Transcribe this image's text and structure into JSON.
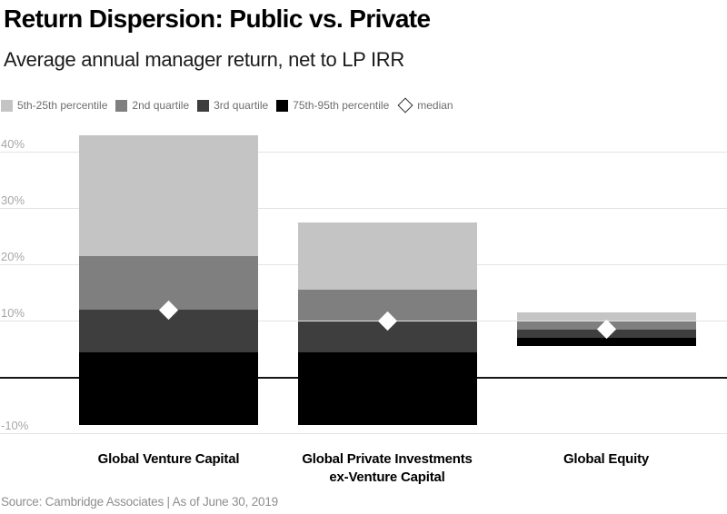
{
  "header": {
    "title": "Return Dispersion: Public vs. Private",
    "subtitle": "Average annual manager return, net to LP IRR"
  },
  "legend": {
    "items": [
      {
        "label": "5th-25th percentile",
        "swatch": "p5_25"
      },
      {
        "label": "2nd quartile",
        "swatch": "q2"
      },
      {
        "label": "3rd quartile",
        "swatch": "q3"
      },
      {
        "label": "75th-95th percentile",
        "swatch": "p75_95"
      },
      {
        "label": "median",
        "swatch": "median_marker"
      }
    ]
  },
  "footer": {
    "source": "Source: Cambridge Associates | As of June 30, 2019"
  },
  "chart_data": {
    "type": "bar",
    "subtype": "stacked-range-dispersion",
    "title": "Return Dispersion: Public vs. Private",
    "subtitle": "Average annual manager return, net to LP IRR",
    "unit": "percent (net to LP IRR)",
    "grid": "horizontal",
    "legend_position": "top-left",
    "ylim": [
      -10,
      43.6
    ],
    "yticks": [
      40,
      30,
      20,
      10,
      -10
    ],
    "ytick_suffix": "%",
    "categories": [
      {
        "label_lines": [
          "Global Venture Capital"
        ],
        "p5": 43,
        "p25": 21.5,
        "median": 12,
        "p75": 4.5,
        "p95": -8.5
      },
      {
        "label_lines": [
          "Global Private Investments",
          "ex-Venture Capital"
        ],
        "p5": 27.5,
        "p25": 15.5,
        "median": 10,
        "p75": 4.5,
        "p95": -8.5
      },
      {
        "label_lines": [
          "Global Equity"
        ],
        "p5": 11.5,
        "p25": 10,
        "median": 8.5,
        "p75": 7,
        "p95": 5.5
      }
    ],
    "segments": [
      {
        "name": "5th-25th percentile",
        "from": "p5",
        "to": "p25",
        "color_key": "p5_25"
      },
      {
        "name": "2nd quartile",
        "from": "p25",
        "to": "median",
        "color_key": "q2"
      },
      {
        "name": "3rd quartile",
        "from": "median",
        "to": "p75",
        "color_key": "q3"
      },
      {
        "name": "75th-95th percentile",
        "from": "p75",
        "to": "p95",
        "color_key": "p75_95"
      }
    ],
    "median_marker": "diamond",
    "colors": {
      "p5_25": "#c4c4c4",
      "q2": "#7f7f7f",
      "q3": "#3e3e3e",
      "p75_95": "#000000",
      "median_marker": "#ffffff",
      "gridline": "#e3e3e3",
      "zero_line": "#141414",
      "tick_label": "#a6a6a6"
    }
  }
}
